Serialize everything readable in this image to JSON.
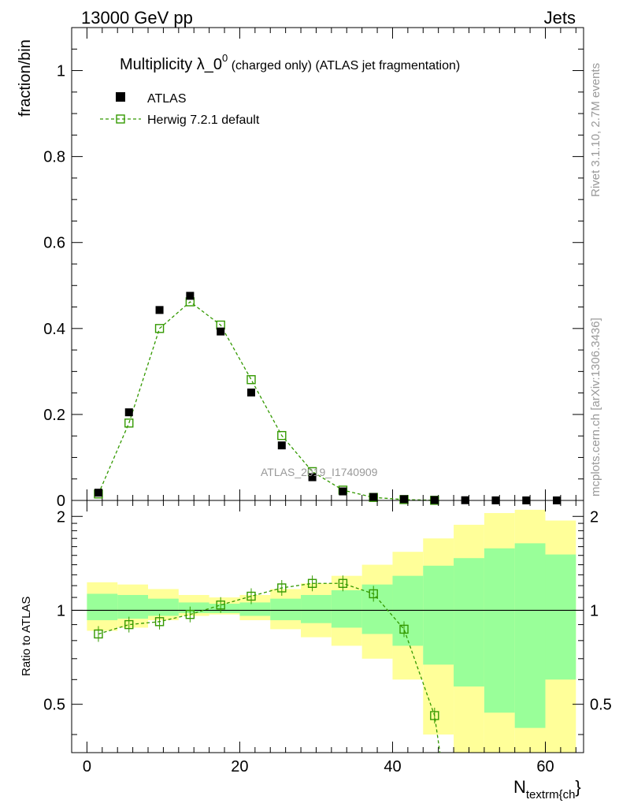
{
  "header": {
    "left": "13000 GeV pp",
    "right": "Jets"
  },
  "side_labels": {
    "rivet": "Rivet 3.1.10,  2.7M events",
    "mcplots": "mcplots.cern.ch [arXiv:1306.3436]"
  },
  "title": {
    "main": "Multiplicity λ_0",
    "sup": "0",
    "small": " (charged only)",
    "tail": " (ATLAS jet fragmentation)"
  },
  "watermark": "ATLAS_2019_I1740909",
  "colors": {
    "data": "#000000",
    "mc": "#339900",
    "band_yellow": "#ffff99",
    "band_green": "#99ff99"
  },
  "chart_data": [
    {
      "type": "scatter",
      "ylabel": "fraction/bin",
      "xlim": [
        -2,
        65
      ],
      "ylim": [
        0,
        1.1
      ],
      "y_ticks": [
        "0",
        "0.2",
        "0.4",
        "0.6",
        "0.8",
        "1"
      ],
      "legend": {
        "placement": "top-left",
        "entries": [
          "ATLAS",
          "Herwig 7.2.1 default"
        ]
      },
      "series": [
        {
          "name": "ATLAS",
          "marker": "filled-square",
          "x": [
            1.5,
            5.5,
            9.5,
            13.5,
            17.5,
            21.5,
            25.5,
            29.5,
            33.5,
            37.5,
            41.5,
            45.5,
            49.5,
            53.5,
            57.5,
            61.5
          ],
          "y": [
            0.018,
            0.205,
            0.443,
            0.476,
            0.393,
            0.251,
            0.128,
            0.054,
            0.021,
            0.008,
            0.003,
            0.001,
            0.0005,
            0.0002,
            0.0001,
            0.0001
          ]
        },
        {
          "name": "Herwig 7.2.1 default",
          "marker": "open-square",
          "line": "dashed",
          "x": [
            1.5,
            5.5,
            9.5,
            13.5,
            17.5,
            21.5,
            25.5,
            29.5,
            33.5,
            37.5,
            41.5,
            45.5
          ],
          "y": [
            0.015,
            0.18,
            0.4,
            0.462,
            0.408,
            0.281,
            0.151,
            0.067,
            0.024,
            0.007,
            0.002,
            0.0003
          ]
        }
      ]
    },
    {
      "type": "scatter",
      "ylabel": "Ratio to ATLAS",
      "xlabel_main": "N",
      "xlabel_sub": "textrm{ch",
      "xlabel_end": "}",
      "xlim": [
        -2,
        65
      ],
      "ylim": [
        0.35,
        2.25
      ],
      "x_ticks": [
        "0",
        "20",
        "40",
        "60"
      ],
      "y_ticks": [
        "0.5",
        "1",
        "2"
      ],
      "bins": [
        0,
        4,
        8,
        12,
        16,
        20,
        24,
        28,
        32,
        36,
        40,
        44,
        48,
        52,
        56,
        60,
        64
      ],
      "band_yellow": {
        "lo": [
          0.86,
          0.88,
          0.93,
          0.96,
          0.97,
          0.93,
          0.87,
          0.82,
          0.77,
          0.7,
          0.6,
          0.4,
          0.3,
          0.3,
          0.3,
          0.3,
          0.78
        ],
        "hi": [
          1.23,
          1.21,
          1.17,
          1.12,
          1.1,
          1.12,
          1.17,
          1.22,
          1.29,
          1.4,
          1.54,
          1.7,
          1.88,
          2.05,
          2.1,
          1.94,
          1.38
        ]
      },
      "band_green": {
        "lo": [
          0.93,
          0.94,
          0.96,
          0.98,
          0.98,
          0.96,
          0.93,
          0.91,
          0.88,
          0.84,
          0.77,
          0.67,
          0.57,
          0.47,
          0.42,
          0.6,
          0.89
        ],
        "hi": [
          1.13,
          1.12,
          1.09,
          1.06,
          1.05,
          1.06,
          1.09,
          1.12,
          1.16,
          1.21,
          1.29,
          1.39,
          1.47,
          1.58,
          1.64,
          1.51,
          1.17
        ]
      },
      "series": [
        {
          "name": "Herwig 7.2.1 default",
          "marker": "open-square",
          "line": "dashed",
          "x": [
            1.5,
            5.5,
            9.5,
            13.5,
            17.5,
            21.5,
            25.5,
            29.5,
            33.5,
            37.5,
            41.5,
            45.5
          ],
          "y": [
            0.84,
            0.9,
            0.92,
            0.97,
            1.04,
            1.11,
            1.18,
            1.22,
            1.22,
            1.13,
            0.87,
            0.46
          ]
        }
      ],
      "reference_line": 1
    }
  ]
}
